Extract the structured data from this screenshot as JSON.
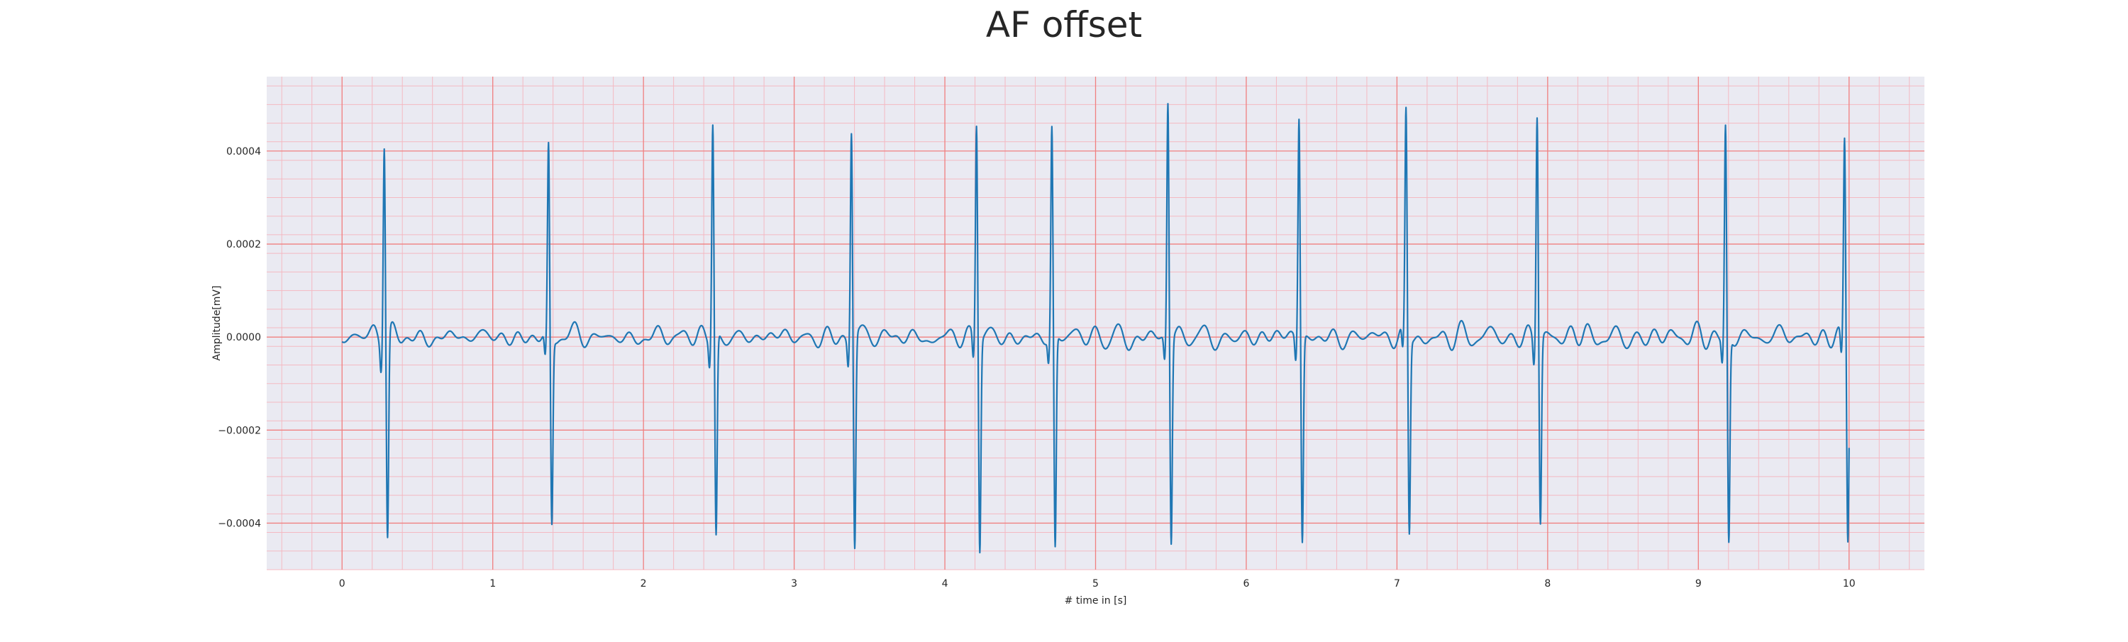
{
  "chart_data": {
    "type": "line",
    "title": "AF offset",
    "xlabel": "# time in [s]",
    "ylabel": "Amplitude[mV]",
    "xlim": [
      -0.5,
      10.5
    ],
    "ylim": [
      -0.0005,
      0.00056
    ],
    "xticks": [
      0,
      1,
      2,
      3,
      4,
      5,
      6,
      7,
      8,
      9,
      10
    ],
    "yticks": [
      -0.0004,
      -0.0002,
      0.0,
      0.0002,
      0.0004
    ],
    "xtick_labels": [
      "0",
      "1",
      "2",
      "3",
      "4",
      "5",
      "6",
      "7",
      "8",
      "9",
      "10"
    ],
    "ytick_labels": [
      "−0.0004",
      "−0.0002",
      "0.0000",
      "0.0002",
      "0.0004"
    ],
    "grid": true,
    "minor_grid": true,
    "colors": {
      "line": "#1f77b4",
      "plot_bg": "#eaeaf2",
      "major_grid": "#f08080",
      "minor_grid": "#f4b9c2"
    },
    "series": [
      {
        "peaks": [
          {
            "t": 0.28,
            "max": 0.00044,
            "min": -0.00043
          },
          {
            "t": 1.37,
            "max": 0.00041,
            "min": -0.0004
          },
          {
            "t": 2.46,
            "max": 0.00047,
            "min": -0.00043
          },
          {
            "t": 3.38,
            "max": 0.00046,
            "min": -0.00045
          },
          {
            "t": 4.21,
            "max": 0.00047,
            "min": -0.00045
          },
          {
            "t": 4.71,
            "max": 0.00045,
            "min": -0.00046
          },
          {
            "t": 5.48,
            "max": 0.00051,
            "min": -0.00044
          },
          {
            "t": 6.35,
            "max": 0.00048,
            "min": -0.00044
          },
          {
            "t": 7.06,
            "max": 0.00048,
            "min": -0.00042
          },
          {
            "t": 7.93,
            "max": 0.0005,
            "min": -0.00039
          },
          {
            "t": 9.18,
            "max": 0.00046,
            "min": -0.00044
          },
          {
            "t": 9.97,
            "max": 0.00044,
            "min": -0.00042
          }
        ],
        "baseline_noise_amplitude": 3e-05
      }
    ]
  }
}
